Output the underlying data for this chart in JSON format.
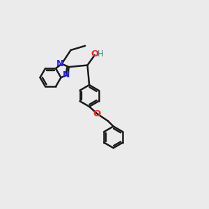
{
  "background_color": "#ebebeb",
  "bond_color": "#1a1a1a",
  "N_color": "#2222ff",
  "O_color": "#ff2222",
  "H_color": "#338888",
  "line_width": 1.8,
  "dbo": 0.055,
  "figsize": [
    3.0,
    3.0
  ],
  "dpi": 100,
  "xlim": [
    0.0,
    5.0
  ],
  "ylim": [
    -0.5,
    5.2
  ]
}
